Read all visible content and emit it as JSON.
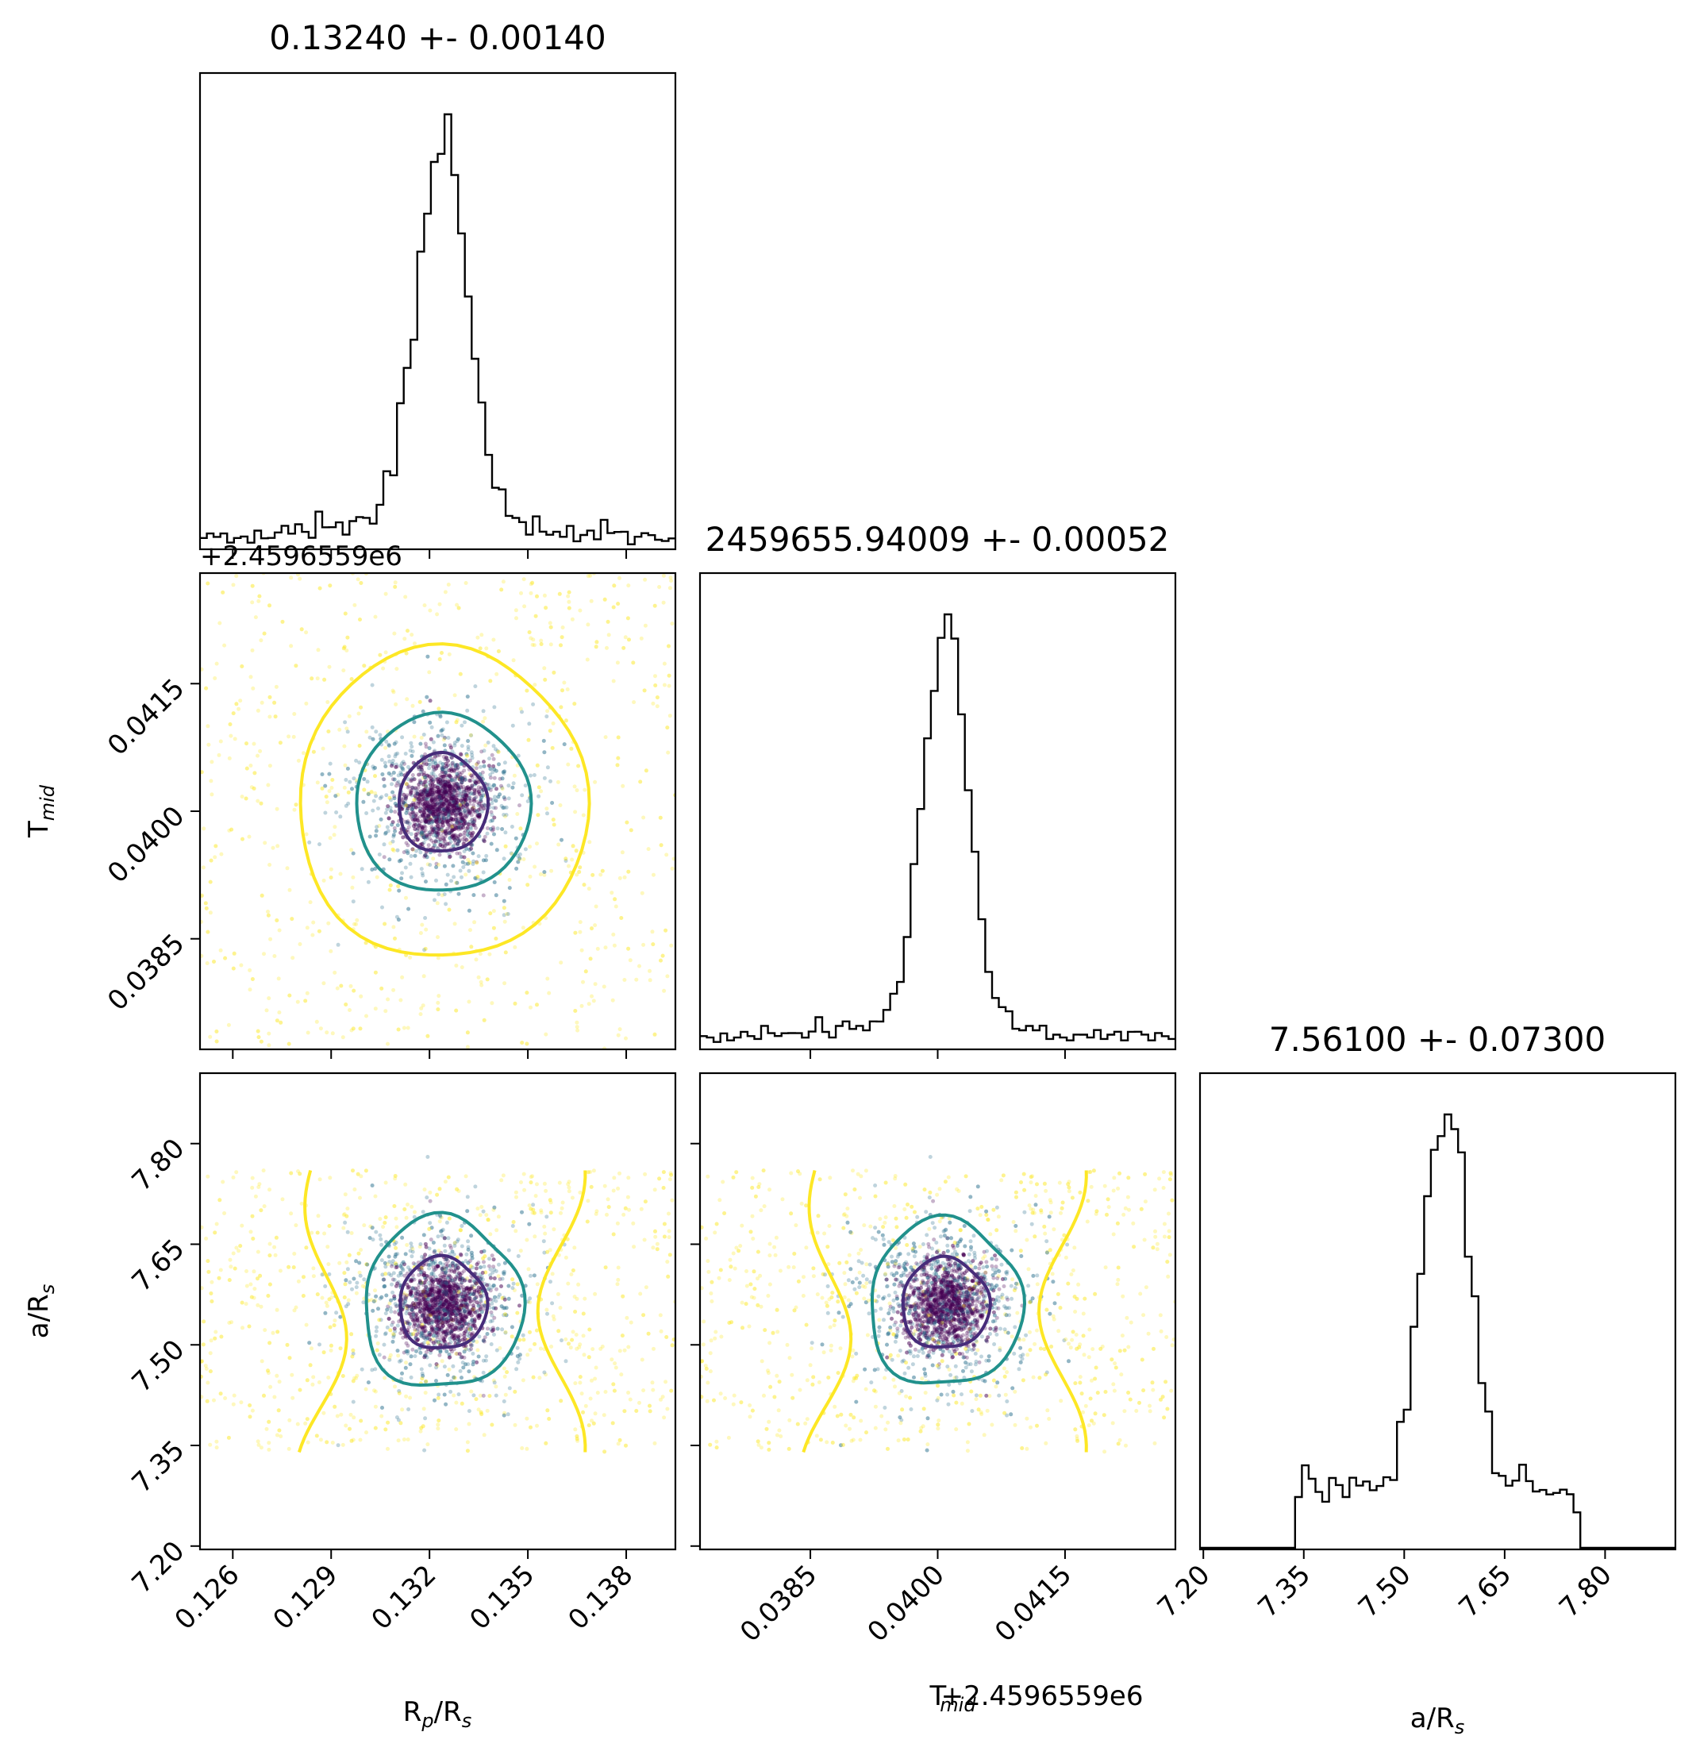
{
  "figure": {
    "background": "#ffffff",
    "colors": {
      "frame": "#000000",
      "hist": "#000000",
      "contour_inner": "#472c7a",
      "contour_middle": "#21918c",
      "contour_outer": "#fde725",
      "points_dense": "#440154",
      "points_mid": "#2c728e",
      "points_outer": "#fde725"
    }
  },
  "chart_data": [
    {
      "type": "histogram",
      "panel": "rp-hist",
      "title": "0.13240 +- 0.00140",
      "xlim": [
        0.125,
        0.1395
      ],
      "peak": 0.1324,
      "sigma": 0.0014,
      "offset_label": "+2.4596559e6"
    },
    {
      "type": "histogram",
      "panel": "tmid-hist",
      "title": "2459655.94009 +- 0.00052",
      "xlim": [
        0.0372,
        0.0428
      ],
      "peak": 0.04009,
      "sigma": 0.00052
    },
    {
      "type": "histogram",
      "panel": "ars-hist",
      "title": "7.56100 +- 0.07300",
      "xlim": [
        7.195,
        7.905
      ],
      "peak": 7.561,
      "sigma": 0.073,
      "support": [
        7.34,
        7.76
      ]
    },
    {
      "type": "scatter",
      "panel": "rp-vs-tmid",
      "xlabel": "",
      "ylabel": "T$_{mid}$",
      "xlim": [
        0.125,
        0.1395
      ],
      "ylim": [
        0.0372,
        0.0428
      ],
      "yticks": [
        "0.0385",
        "0.0400",
        "0.0415"
      ]
    },
    {
      "type": "scatter",
      "panel": "rp-vs-ars",
      "xlabel": "R$_p$/R$_s$",
      "ylabel": "a/R$_s$",
      "xlim": [
        0.125,
        0.1395
      ],
      "ylim": [
        7.195,
        7.905
      ],
      "xticks": [
        "0.126",
        "0.129",
        "0.132",
        "0.135",
        "0.138"
      ],
      "yticks": [
        "7.20",
        "7.35",
        "7.50",
        "7.65",
        "7.80"
      ]
    },
    {
      "type": "scatter",
      "panel": "tmid-vs-ars",
      "xlabel": "T$_{mid}$+2.4596559e6",
      "ylabel": "",
      "xlim": [
        0.0372,
        0.0428
      ],
      "ylim": [
        7.195,
        7.905
      ],
      "xticks": [
        "0.0385",
        "0.0400",
        "0.0415"
      ]
    },
    {
      "type": "histogram",
      "panel": "ars-hist-axis",
      "xlabel": "a/R$_s$",
      "xticks": [
        "7.20",
        "7.35",
        "7.50",
        "7.65",
        "7.80"
      ]
    }
  ],
  "labels": {
    "offset": "+2.4596559e6",
    "xlabel_rp_main": "R",
    "xlabel_rp_sub": "p",
    "xlabel_rp_tail": "/R",
    "xlabel_rp_sub2": "s",
    "xlabel_tmid_main": "T",
    "xlabel_tmid_sub": "mid",
    "xlabel_tmid_tail": "+2.4596559e6",
    "xlabel_ars_main": "a/R",
    "xlabel_ars_sub": "s",
    "ylabel_tmid_main": "T",
    "ylabel_tmid_sub": "mid",
    "ylabel_ars_main": "a/R",
    "ylabel_ars_sub": "s",
    "title_rp": "0.13240 +- 0.00140",
    "title_tmid": "2459655.94009 +- 0.00052",
    "title_ars": "7.56100 +- 0.07300",
    "rp_ticks": [
      "0.126",
      "0.129",
      "0.132",
      "0.135",
      "0.138"
    ],
    "tmid_ticks": [
      "0.0385",
      "0.0400",
      "0.0415"
    ],
    "ars_ticks": [
      "7.20",
      "7.35",
      "7.50",
      "7.65",
      "7.80"
    ]
  }
}
